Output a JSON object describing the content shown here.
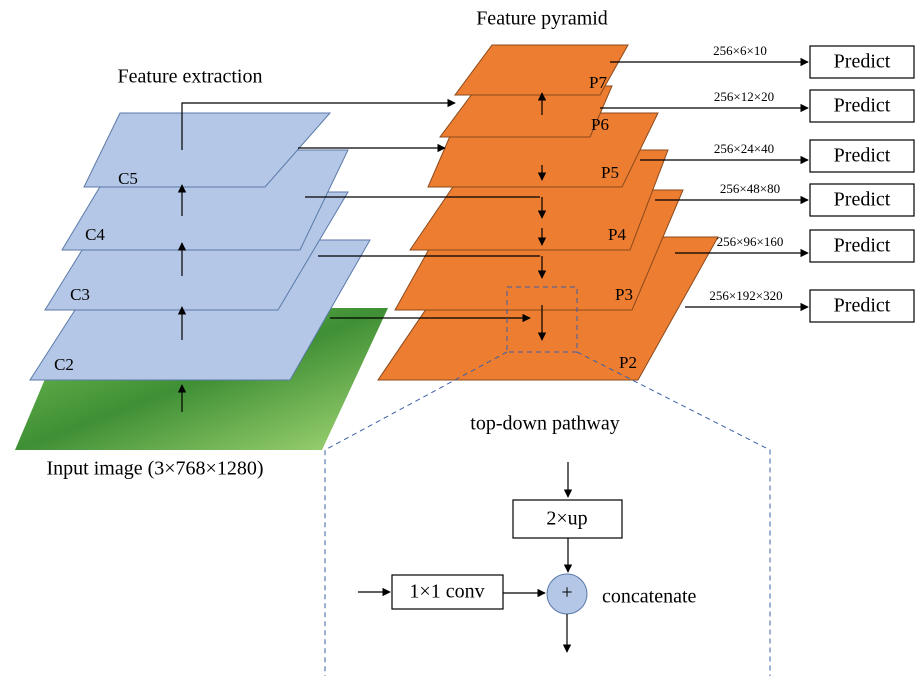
{
  "feature_extraction": {
    "title": "Feature extraction",
    "layers": [
      "C5",
      "C4",
      "C3",
      "C2"
    ]
  },
  "input_label": "Input image (3×768×1280)",
  "feature_pyramid": {
    "title": "Feature pyramid",
    "layers": [
      "P7",
      "P6",
      "P5",
      "P4",
      "P3",
      "P2"
    ]
  },
  "outputs": [
    {
      "dims": "256×6×10",
      "label": "Predict"
    },
    {
      "dims": "256×12×20",
      "label": "Predict"
    },
    {
      "dims": "256×24×40",
      "label": "Predict"
    },
    {
      "dims": "256×48×80",
      "label": "Predict"
    },
    {
      "dims": "256×96×160",
      "label": "Predict"
    },
    {
      "dims": "256×192×320",
      "label": "Predict"
    }
  ],
  "inset": {
    "title": "top-down pathway",
    "upsample": "2×up",
    "conv": "1×1 conv",
    "op": "+",
    "op_label": "concatenate"
  }
}
